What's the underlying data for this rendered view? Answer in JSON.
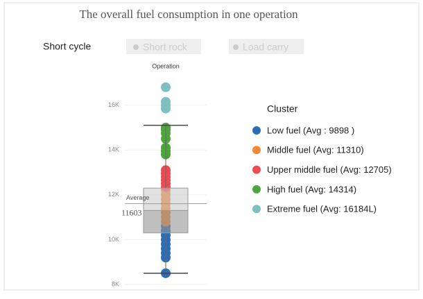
{
  "controls": {
    "label": "Short cycle",
    "buttons": [
      "Short rock",
      "Load carry"
    ]
  },
  "chart_data": {
    "type": "strip",
    "title": "The overall fuel consumption in one operation",
    "categories": [
      "Operation"
    ],
    "ylim": [
      7900,
      17300
    ],
    "yticks": [
      {
        "value": 8000,
        "label": "8K"
      },
      {
        "value": 10000,
        "label": "10K"
      },
      {
        "value": 12000,
        "label": "12K"
      },
      {
        "value": 14000,
        "label": "14K"
      },
      {
        "value": 16000,
        "label": "16K"
      }
    ],
    "grid": true,
    "legend_title": "Cluster",
    "series": [
      {
        "name": "Low fuel (Avg : 9898 )",
        "color": "#2e6db4",
        "values": [
          10600,
          10400,
          10200,
          10000,
          9800,
          9600,
          9400,
          9200,
          8500
        ]
      },
      {
        "name": "Middle fuel (Avg: 11310)",
        "color": "#f0883a",
        "values": [
          12200,
          12000,
          11800,
          11600,
          11400,
          11200,
          11000,
          10800
        ]
      },
      {
        "name": "Upper middle fuel (Avg: 12705)",
        "color": "#ec4a55",
        "values": [
          13100,
          12950,
          12800,
          12650,
          12500,
          12350
        ]
      },
      {
        "name": "High fuel (Avg: 14314)",
        "color": "#4ea53c",
        "values": [
          15000,
          14900,
          14750,
          14500,
          14100,
          13950,
          13800
        ]
      },
      {
        "name": "Extreme fuel (Avg: 16184L)",
        "color": "#7fbfc0",
        "values": [
          16800,
          16150,
          16000,
          15850
        ]
      }
    ],
    "box": {
      "whisker_low": 8500,
      "q1": 10300,
      "median": 11300,
      "q3": 12300,
      "whisker_high": 15100
    },
    "average": {
      "label": "Average",
      "value": 11603
    }
  }
}
